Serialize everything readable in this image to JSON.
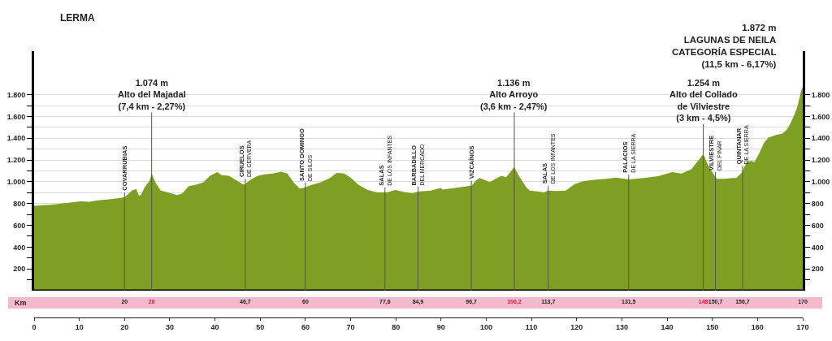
{
  "chart_data": {
    "type": "area",
    "x": [
      0,
      2,
      4,
      6,
      8,
      10.2,
      12.2,
      14.1,
      16.1,
      18.1,
      20,
      20.9,
      21.8,
      22.6,
      23.2,
      23.6,
      24.5,
      25.5,
      26,
      27,
      28,
      29.6,
      31.6,
      32.7,
      34.2,
      35.8,
      37.4,
      38.9,
      40.5,
      41.5,
      43.1,
      44.7,
      46.3,
      46.8,
      48.2,
      49.5,
      50.9,
      52.8,
      54.6,
      56,
      57.4,
      58.7,
      59.6,
      61.2,
      63.3,
      65.4,
      67,
      68.6,
      70.1,
      71.7,
      73.8,
      75.9,
      78,
      79.9,
      81.8,
      83.7,
      85.1,
      87.8,
      89.9,
      90.4,
      93.1,
      96.8,
      97.8,
      98.5,
      99.8,
      100.8,
      101.8,
      103.3,
      104.4,
      106.2,
      107.2,
      108.8,
      109.6,
      111.2,
      112.8,
      113.6,
      115.6,
      117.6,
      119.6,
      121.6,
      124.6,
      126.6,
      128.6,
      131.6,
      134.8,
      138,
      141.1,
      143.2,
      145.4,
      148,
      149,
      150.3,
      151,
      152.7,
      154.4,
      155.3,
      156.5,
      157.6,
      158.6,
      159.3,
      160.3,
      161.4,
      162.4,
      164.1,
      165.5,
      166.5,
      167.2,
      168.3,
      168.9,
      169.6,
      170
    ],
    "values": [
      780,
      785,
      790,
      800,
      810,
      821,
      817,
      829,
      837,
      846,
      858,
      891,
      924,
      932,
      870,
      879,
      953,
      1006,
      1074,
      981,
      920,
      903,
      879,
      891,
      961,
      973,
      994,
      1055,
      1088,
      1060,
      1055,
      1014,
      973,
      985,
      1027,
      1055,
      1068,
      1076,
      1092,
      1076,
      994,
      940,
      944,
      969,
      994,
      1035,
      1084,
      1076,
      1035,
      973,
      924,
      903,
      903,
      924,
      907,
      895,
      911,
      920,
      944,
      928,
      944,
      965,
      1014,
      1035,
      1014,
      998,
      1022,
      1055,
      1043,
      1136,
      1055,
      953,
      920,
      911,
      903,
      920,
      916,
      920,
      981,
      1006,
      1022,
      1027,
      1039,
      1022,
      1035,
      1051,
      1088,
      1076,
      1117,
      1254,
      1158,
      1068,
      1027,
      1027,
      1035,
      1035,
      1084,
      1180,
      1193,
      1180,
      1255,
      1355,
      1405,
      1430,
      1443,
      1480,
      1530,
      1630,
      1705,
      1830,
      1872
    ],
    "color": "#7f9f24",
    "xlim": [
      0,
      170
    ],
    "xticks": [
      0,
      10,
      20,
      30,
      40,
      50,
      60,
      70,
      80,
      90,
      100,
      110,
      120,
      130,
      140,
      150,
      160,
      170
    ],
    "x2lim": [
      0,
      170
    ],
    "x2label": "Km",
    "x2ticks": [
      20,
      26,
      {
        "value": 46.7,
        "label": "46,7"
      },
      60,
      {
        "value": 77.6,
        "label": "77,6"
      },
      {
        "value": 84.9,
        "label": "84,9"
      },
      {
        "value": 96.7,
        "label": "96,7"
      },
      {
        "value": 106.2,
        "label": "106,2"
      },
      {
        "value": 113.7,
        "label": "113,7"
      },
      {
        "value": 131.5,
        "label": "131,5"
      },
      148,
      {
        "value": 150.7,
        "label": "150,7"
      },
      {
        "value": 156.7,
        "label": "156,7"
      },
      170
    ],
    "ylim": [
      0,
      2200
    ],
    "yticks": [
      {
        "value": 100,
        "label": null
      },
      200,
      {
        "value": 300,
        "label": null
      },
      400,
      {
        "value": 500,
        "label": null
      },
      600,
      {
        "value": 700,
        "label": null
      },
      800,
      {
        "value": 900,
        "label": null
      },
      {
        "value": 1000,
        "label": "1.000"
      },
      {
        "value": 1100,
        "label": null
      },
      {
        "value": 1200,
        "label": "1.200"
      },
      {
        "value": 1300,
        "label": null
      },
      {
        "value": 1400,
        "label": "1.400"
      },
      {
        "value": 1500,
        "label": null
      },
      {
        "value": 1600,
        "label": "1.600"
      },
      {
        "value": 1700,
        "label": null
      },
      {
        "value": 1800,
        "label": "1.800"
      }
    ],
    "y2lim": [
      0,
      2200
    ],
    "y2ticks": [
      {
        "value": 100,
        "label": null
      },
      200,
      {
        "value": 300,
        "label": null
      },
      400,
      {
        "value": 500,
        "label": null
      },
      600,
      {
        "value": 700,
        "label": null
      },
      800,
      {
        "value": 900,
        "label": null
      },
      {
        "value": 1000,
        "label": "1.000"
      },
      {
        "value": 1100,
        "label": null
      },
      {
        "value": 1200,
        "label": "1.200"
      },
      {
        "value": 1300,
        "label": null
      },
      {
        "value": 1400,
        "label": "1.400"
      },
      {
        "value": 1500,
        "label": null
      },
      {
        "value": 1600,
        "label": "1.600"
      },
      {
        "value": 1700,
        "label": null
      },
      {
        "value": 1800,
        "label": "1.800"
      }
    ],
    "grid": "y",
    "ref_lines": [
      {
        "axis": "x",
        "value": 20,
        "label": "COVARRUBIAS"
      },
      {
        "axis": "x",
        "value": 26
      },
      {
        "axis": "x",
        "value": 46.7,
        "label": "CIRUELOS\nDE CERVERA"
      },
      {
        "axis": "x",
        "value": 60,
        "label": "SANTO DOMINGO\nDE SILOS"
      },
      {
        "axis": "x",
        "value": 77.6,
        "label": "SALAS\nDE LOS INFANTES"
      },
      {
        "axis": "x",
        "value": 84.9,
        "label": "BARBADILLO\nDEL MERCADO"
      },
      {
        "axis": "x",
        "value": 96.7,
        "label": "VIZCAÍNOS"
      },
      {
        "axis": "x",
        "value": 106.2
      },
      {
        "axis": "x",
        "value": 113.7,
        "label": "SALAS\nDE LOS INFANTES"
      },
      {
        "axis": "x",
        "value": 131.5,
        "label": "PALACIOS\nDE LA SIERRA"
      },
      {
        "axis": "x",
        "value": 148
      },
      {
        "axis": "x",
        "value": 150.7,
        "label": "VILVIESTRE\nDEL PINAR"
      },
      {
        "axis": "x",
        "value": 156.7,
        "label": "QUINTANAR\nDE LA SIERRA"
      }
    ],
    "annotations": [
      "LERMA",
      {
        "text": "1.074 m\nAlto del Majadal\n(7,4 km - 2,27%)",
        "x": 26,
        "y": 1074
      },
      {
        "text": "1.136 m\nAlto Arroyo\n(3,6 km - 2,47%)",
        "x": 106.2,
        "y": 1136
      },
      {
        "text": "1.254 m\nAlto del Collado\nde Vilviestre\n(3 km - 4,5%)",
        "x": 148,
        "y": 1254
      },
      "1.872 m\nLAGUNAS DE NEILA\nCATEGORÍA ESPECIAL\n(11,5 km - 6,17%)"
    ]
  }
}
